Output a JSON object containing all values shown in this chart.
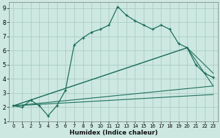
{
  "xlabel": "Humidex (Indice chaleur)",
  "bg_color": "#cce8e0",
  "grid_color": "#aaccC4",
  "line_color": "#1a6b5a",
  "xlim": [
    -0.5,
    23.5
  ],
  "ylim": [
    1,
    9.4
  ],
  "yticks": [
    1,
    2,
    3,
    4,
    5,
    6,
    7,
    8,
    9
  ],
  "xticks": [
    0,
    1,
    2,
    3,
    4,
    5,
    6,
    7,
    8,
    9,
    10,
    11,
    12,
    13,
    14,
    15,
    16,
    17,
    18,
    19,
    20,
    21,
    22,
    23
  ],
  "series1_x": [
    0,
    1,
    2,
    3,
    4,
    5,
    6,
    7,
    8,
    9,
    10,
    11,
    12,
    13,
    14,
    15,
    16,
    17,
    18,
    19,
    20,
    21,
    22,
    23
  ],
  "series1_y": [
    2.1,
    2.0,
    2.5,
    2.1,
    1.4,
    2.1,
    3.2,
    6.4,
    6.9,
    7.3,
    7.5,
    7.8,
    9.1,
    8.5,
    8.1,
    7.8,
    7.5,
    7.8,
    7.5,
    6.5,
    6.2,
    5.0,
    4.4,
    4.1
  ],
  "series2_x": [
    0,
    20,
    23
  ],
  "series2_y": [
    2.1,
    6.2,
    4.4
  ],
  "series3_x": [
    0,
    20,
    23
  ],
  "series3_y": [
    2.1,
    6.2,
    3.5
  ],
  "series4_x": [
    0,
    23
  ],
  "series4_y": [
    2.1,
    3.5
  ],
  "series5_x": [
    0,
    23
  ],
  "series5_y": [
    2.1,
    2.9
  ]
}
